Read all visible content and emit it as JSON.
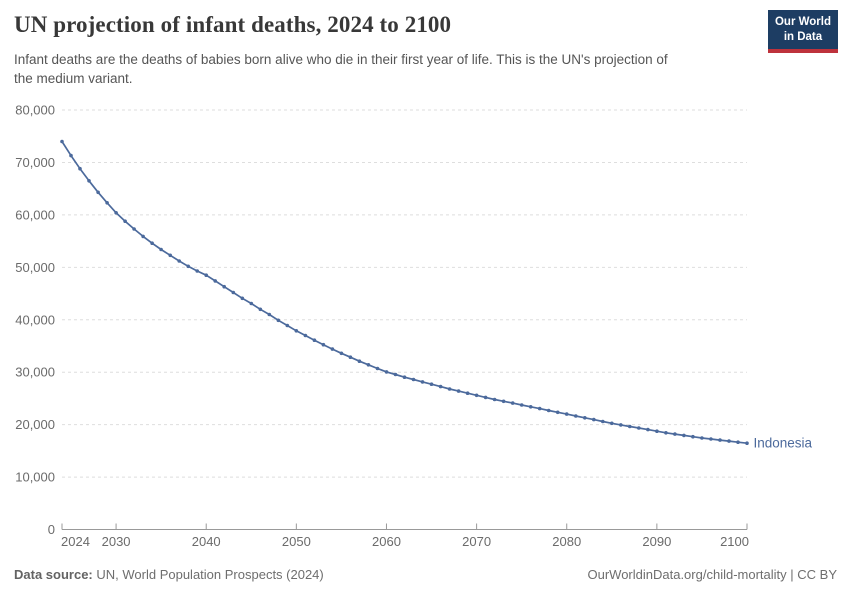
{
  "header": {
    "title": "UN projection of infant deaths, 2024 to 2100",
    "subtitle_line1": "Infant deaths are the deaths of babies born alive who die in their first year of life. This is the UN's projection of",
    "subtitle_line2": "the medium variant.",
    "logo": {
      "line1": "Our World",
      "line2": "in Data",
      "bg_color": "#1d3d63",
      "accent_color": "#be323c"
    }
  },
  "chart_data": {
    "type": "line",
    "title": "UN projection of infant deaths, 2024 to 2100",
    "xlabel": "",
    "ylabel": "",
    "xlim": [
      2024,
      2100
    ],
    "ylim": [
      0,
      80000
    ],
    "grid": "horizontal-dashed",
    "legend_position": "end-of-line-label",
    "x": [
      2024,
      2025,
      2026,
      2027,
      2028,
      2029,
      2030,
      2031,
      2032,
      2033,
      2034,
      2035,
      2036,
      2037,
      2038,
      2039,
      2040,
      2041,
      2042,
      2043,
      2044,
      2045,
      2046,
      2047,
      2048,
      2049,
      2050,
      2051,
      2052,
      2053,
      2054,
      2055,
      2056,
      2057,
      2058,
      2059,
      2060,
      2061,
      2062,
      2063,
      2064,
      2065,
      2066,
      2067,
      2068,
      2069,
      2070,
      2071,
      2072,
      2073,
      2074,
      2075,
      2076,
      2077,
      2078,
      2079,
      2080,
      2081,
      2082,
      2083,
      2084,
      2085,
      2086,
      2087,
      2088,
      2089,
      2090,
      2091,
      2092,
      2093,
      2094,
      2095,
      2096,
      2097,
      2098,
      2099,
      2100
    ],
    "series": [
      {
        "name": "Indonesia",
        "color": "#4C6A9C",
        "values": [
          74000,
          71300,
          68800,
          66500,
          64300,
          62300,
          60400,
          58800,
          57300,
          55900,
          54600,
          53400,
          52300,
          51200,
          50200,
          49300,
          48500,
          47400,
          46300,
          45200,
          44100,
          43100,
          42000,
          41000,
          39900,
          38900,
          37900,
          37000,
          36100,
          35250,
          34400,
          33600,
          32850,
          32100,
          31400,
          30700,
          30050,
          29550,
          29050,
          28600,
          28150,
          27700,
          27250,
          26800,
          26400,
          26000,
          25600,
          25200,
          24800,
          24450,
          24100,
          23750,
          23400,
          23050,
          22700,
          22350,
          22000,
          21650,
          21300,
          20950,
          20600,
          20250,
          19950,
          19650,
          19350,
          19050,
          18750,
          18450,
          18200,
          17950,
          17700,
          17450,
          17250,
          17050,
          16850,
          16650,
          16450
        ]
      }
    ],
    "y_ticks": [
      {
        "value": 0,
        "label": "0"
      },
      {
        "value": 10000,
        "label": "10,000"
      },
      {
        "value": 20000,
        "label": "20,000"
      },
      {
        "value": 30000,
        "label": "30,000"
      },
      {
        "value": 40000,
        "label": "40,000"
      },
      {
        "value": 50000,
        "label": "50,000"
      },
      {
        "value": 60000,
        "label": "60,000"
      },
      {
        "value": 70000,
        "label": "70,000"
      },
      {
        "value": 80000,
        "label": "80,000"
      }
    ],
    "x_ticks": [
      {
        "value": 2024,
        "label": "2024"
      },
      {
        "value": 2030,
        "label": "2030"
      },
      {
        "value": 2040,
        "label": "2040"
      },
      {
        "value": 2050,
        "label": "2050"
      },
      {
        "value": 2060,
        "label": "2060"
      },
      {
        "value": 2070,
        "label": "2070"
      },
      {
        "value": 2080,
        "label": "2080"
      },
      {
        "value": 2090,
        "label": "2090"
      },
      {
        "value": 2100,
        "label": "2100"
      }
    ]
  },
  "footer": {
    "source_label": "Data source:",
    "source_text": "UN, World Population Prospects (2024)",
    "url": "OurWorldinData.org/child-mortality",
    "license": " | CC BY"
  },
  "colors": {
    "line": "#4C6A9C",
    "grid": "#dedede",
    "axis": "#999999",
    "tick_text": "#6b6b6b",
    "title_text": "#383838",
    "subtitle_text": "#555555"
  }
}
